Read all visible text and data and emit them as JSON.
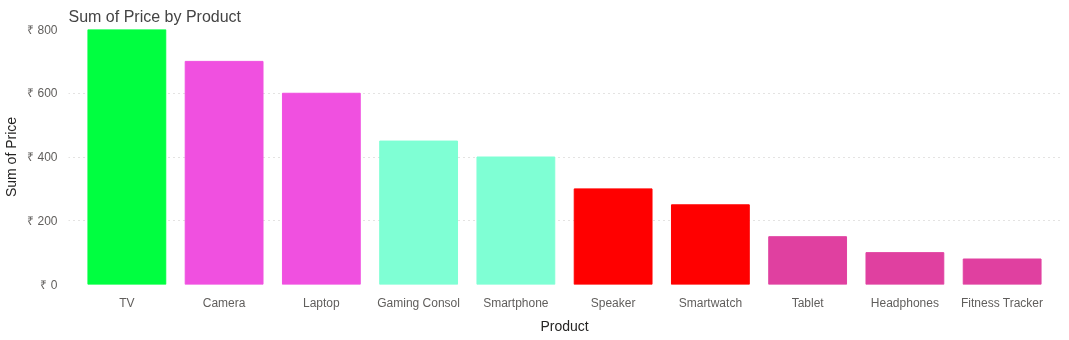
{
  "chart_data": {
    "type": "bar",
    "title": "Sum of Price by Product",
    "xlabel": "Product",
    "ylabel": "Sum of Price",
    "categories": [
      "TV",
      "Camera",
      "Laptop",
      "Gaming Consol",
      "Smartphone",
      "Speaker",
      "Smartwatch",
      "Tablet",
      "Headphones",
      "Fitness Tracker"
    ],
    "values": [
      800,
      700,
      600,
      450,
      400,
      300,
      250,
      150,
      100,
      80
    ],
    "colors": [
      "#00ff40",
      "#f050e0",
      "#f050e0",
      "#7fffd4",
      "#7fffd4",
      "#ff0000",
      "#ff0000",
      "#e040a0",
      "#e040a0",
      "#e040a0"
    ],
    "ylim": [
      0,
      800
    ],
    "yticks": [
      {
        "value": 0,
        "label": "₹ 0"
      },
      {
        "value": 200,
        "label": "₹ 200"
      },
      {
        "value": 400,
        "label": "₹ 400"
      },
      {
        "value": 600,
        "label": "₹ 600"
      },
      {
        "value": 800,
        "label": "₹ 800"
      }
    ],
    "grid": "y"
  }
}
